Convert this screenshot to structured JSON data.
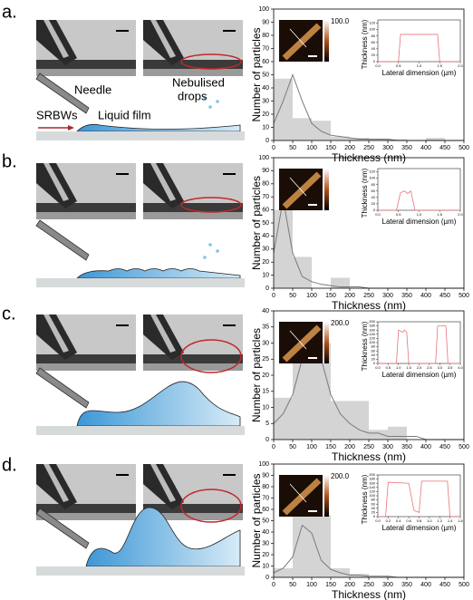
{
  "labels": {
    "panels": [
      "a.",
      "b.",
      "c.",
      "d."
    ],
    "needle": "Needle",
    "nebulised": [
      "Nebulised",
      "drops"
    ],
    "srbws": "SRBWs",
    "liquid_film": "Liquid film"
  },
  "chart_data": [
    {
      "type": "histogram",
      "xlabel": "Thickness (nm)",
      "ylabel": "Number of particles",
      "bins": [
        0,
        50,
        100,
        150,
        200,
        250,
        300,
        350,
        400,
        450,
        500
      ],
      "values": [
        47,
        17,
        15,
        3,
        2,
        1,
        1,
        0,
        2,
        0
      ],
      "color": "#d4d4d4",
      "xlim": [
        0,
        500
      ],
      "ylim": [
        0,
        100
      ],
      "xticks": [
        0,
        50,
        100,
        150,
        200,
        250,
        300,
        350,
        400,
        450,
        500
      ],
      "yticks": [
        0,
        10,
        20,
        30,
        40,
        50,
        60,
        70,
        80,
        90,
        100
      ],
      "fit": {
        "x": [
          0,
          25,
          50,
          75,
          100,
          125,
          150,
          175,
          200,
          225,
          250,
          275,
          300,
          325,
          350,
          375,
          400,
          425,
          450,
          475,
          500
        ],
        "values": [
          13,
          30,
          50,
          30,
          13,
          7,
          4,
          3,
          2,
          1,
          1,
          1,
          1,
          0,
          0,
          0,
          0,
          0,
          0,
          0,
          0
        ],
        "color": "#7a7a7a"
      },
      "inset": {
        "type": "line",
        "colorbar_label": "100.0",
        "xlabel": "Lateral dimension (µm)",
        "ylabel": "Thickness (nm)",
        "x": [
          0,
          0.5,
          0.55,
          1.45,
          1.5,
          2.0
        ],
        "values": [
          0,
          0,
          85,
          85,
          0,
          0
        ],
        "color": "#e8747c",
        "xlim": [
          0,
          2
        ],
        "ylim": [
          0,
          130
        ],
        "xticks": [
          {
            "value": 0,
            "label": "0.0"
          },
          0.5,
          {
            "value": 1,
            "label": "1.0"
          },
          1.5,
          {
            "value": 2,
            "label": "2.0"
          }
        ],
        "yticks": [
          0,
          20,
          40,
          60,
          80,
          100,
          120
        ]
      }
    },
    {
      "type": "histogram",
      "xlabel": "Thickness (nm)",
      "ylabel": "Number of particles",
      "bins": [
        0,
        50,
        100,
        150,
        200,
        250,
        300,
        350,
        400,
        450,
        500
      ],
      "values": [
        60,
        24,
        0,
        8,
        0,
        0,
        0,
        0,
        0,
        0
      ],
      "color": "#d4d4d4",
      "xlim": [
        0,
        500
      ],
      "ylim": [
        0,
        100
      ],
      "xticks": [
        0,
        50,
        100,
        150,
        200,
        250,
        300,
        350,
        400,
        450,
        500
      ],
      "yticks": [
        0,
        10,
        20,
        30,
        40,
        50,
        60,
        70,
        80,
        90,
        100
      ],
      "fit": {
        "x": [
          0,
          25,
          50,
          75,
          100,
          125,
          150,
          175,
          200,
          225,
          250,
          275,
          300,
          325,
          350,
          375,
          400,
          425,
          450,
          475,
          500
        ],
        "values": [
          27,
          68,
          27,
          9,
          5,
          3,
          2,
          1,
          1,
          1,
          0,
          0,
          0,
          0,
          0,
          0,
          0,
          0,
          0,
          0,
          0
        ],
        "color": "#7a7a7a"
      },
      "inset": {
        "type": "line",
        "xlabel": "Lateral dimension (µm)",
        "ylabel": "Thickness (nm)",
        "x": [
          0,
          0.45,
          0.55,
          0.65,
          0.72,
          0.8,
          0.9,
          2.0
        ],
        "values": [
          0,
          0,
          55,
          60,
          52,
          60,
          0,
          0
        ],
        "color": "#e8747c",
        "xlim": [
          0,
          2
        ],
        "ylim": [
          0,
          130
        ],
        "xticks": [
          {
            "value": 0,
            "label": "0.0"
          },
          0.5,
          {
            "value": 1,
            "label": "1.0"
          },
          1.5,
          {
            "value": 2,
            "label": "2.0"
          }
        ],
        "yticks": [
          0,
          20,
          40,
          60,
          80,
          100,
          120
        ]
      }
    },
    {
      "type": "histogram",
      "xlabel": "Thickness (nm)",
      "ylabel": "Number of particles",
      "bins": [
        0,
        50,
        100,
        150,
        200,
        250,
        300,
        350,
        400,
        450,
        500
      ],
      "values": [
        13,
        35,
        30,
        12,
        12,
        3,
        4,
        0,
        0,
        0
      ],
      "color": "#d4d4d4",
      "xlim": [
        0,
        500
      ],
      "ylim": [
        0,
        40
      ],
      "xticks": [
        0,
        50,
        100,
        150,
        200,
        250,
        300,
        350,
        400,
        450,
        500
      ],
      "yticks": [
        0,
        5,
        10,
        15,
        20,
        25,
        30,
        35,
        40
      ],
      "fit": {
        "x": [
          0,
          25,
          50,
          75,
          100,
          125,
          150,
          175,
          200,
          225,
          250,
          275,
          300,
          325,
          350,
          375,
          400,
          425,
          450,
          475,
          500
        ],
        "values": [
          5,
          8,
          14,
          25,
          35,
          25,
          14,
          8,
          5,
          3,
          2,
          2,
          1,
          1,
          1,
          1,
          0,
          0,
          0,
          0,
          0
        ],
        "color": "#7a7a7a"
      },
      "inset": {
        "type": "line",
        "colorbar_label": "200.0",
        "xlabel": "Lateral dimension (µm)",
        "ylabel": "Thickness (nm)",
        "x": [
          0,
          0.9,
          1.0,
          1.2,
          1.3,
          1.4,
          1.5,
          2.8,
          2.9,
          3.3,
          3.4,
          4.0
        ],
        "values": [
          0,
          0,
          160,
          150,
          160,
          150,
          0,
          0,
          180,
          180,
          0,
          0
        ],
        "color": "#e8747c",
        "xlim": [
          0,
          4
        ],
        "ylim": [
          0,
          200
        ],
        "xticks": [
          {
            "value": 0,
            "label": "0.0"
          },
          0.5,
          {
            "value": 1,
            "label": "1.0"
          },
          1.5,
          {
            "value": 2,
            "label": "2.0"
          },
          2.5,
          {
            "value": 3,
            "label": "3.0"
          },
          3.5,
          {
            "value": 4,
            "label": "4.0"
          }
        ],
        "yticks": [
          0,
          20,
          40,
          60,
          80,
          100,
          120,
          140,
          160,
          180,
          200
        ]
      }
    },
    {
      "type": "histogram",
      "xlabel": "Thickness (nm)",
      "ylabel": "Number of particles",
      "bins": [
        0,
        50,
        100,
        150,
        200,
        250,
        300,
        350,
        400,
        450,
        500
      ],
      "values": [
        8,
        55,
        55,
        8,
        3,
        0,
        0,
        0,
        0,
        0
      ],
      "color": "#d4d4d4",
      "xlim": [
        0,
        500
      ],
      "ylim": [
        0,
        100
      ],
      "xticks": [
        0,
        50,
        100,
        150,
        200,
        250,
        300,
        350,
        400,
        450,
        500
      ],
      "yticks": [
        0,
        10,
        20,
        30,
        40,
        50,
        60,
        70,
        80,
        90,
        100
      ],
      "fit": {
        "x": [
          0,
          25,
          50,
          75,
          100,
          125,
          150,
          175,
          200,
          225,
          250,
          275,
          300,
          325,
          350,
          375,
          400,
          425,
          450,
          475,
          500
        ],
        "values": [
          4,
          8,
          18,
          46,
          39,
          15,
          7,
          4,
          2,
          2,
          1,
          1,
          1,
          0,
          0,
          0,
          0,
          0,
          0,
          0,
          0
        ],
        "color": "#7a7a7a"
      },
      "inset": {
        "type": "line",
        "colorbar_label": "200.0",
        "xlabel": "Lateral dimension (µm)",
        "ylabel": "Thickness (nm)",
        "x": [
          0,
          0.15,
          0.2,
          0.6,
          0.7,
          0.8,
          0.85,
          1.35,
          1.4,
          1.6
        ],
        "values": [
          0,
          0,
          165,
          160,
          30,
          20,
          170,
          170,
          0,
          0
        ],
        "color": "#e8747c",
        "xlim": [
          0,
          1.6
        ],
        "ylim": [
          0,
          200
        ],
        "xticks": [
          {
            "value": 0,
            "label": "0.0"
          },
          0.2,
          0.4,
          0.6,
          0.8,
          {
            "value": 1,
            "label": "1.0"
          },
          1.2,
          1.4,
          1.6
        ],
        "yticks": [
          0,
          20,
          40,
          60,
          80,
          100,
          120,
          140,
          160,
          180,
          200
        ]
      }
    }
  ]
}
